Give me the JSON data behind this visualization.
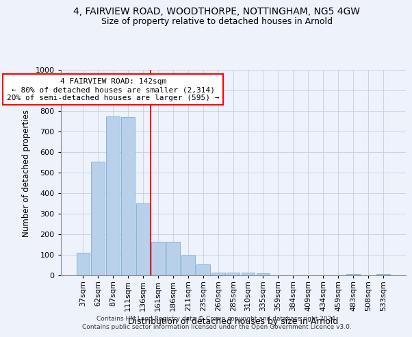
{
  "title1": "4, FAIRVIEW ROAD, WOODTHORPE, NOTTINGHAM, NG5 4GW",
  "title2": "Size of property relative to detached houses in Arnold",
  "xlabel": "Distribution of detached houses by size in Arnold",
  "ylabel": "Number of detached properties",
  "categories": [
    "37sqm",
    "62sqm",
    "87sqm",
    "111sqm",
    "136sqm",
    "161sqm",
    "186sqm",
    "211sqm",
    "235sqm",
    "260sqm",
    "285sqm",
    "310sqm",
    "335sqm",
    "359sqm",
    "384sqm",
    "409sqm",
    "434sqm",
    "459sqm",
    "483sqm",
    "508sqm",
    "533sqm"
  ],
  "values": [
    110,
    555,
    775,
    770,
    350,
    163,
    163,
    98,
    55,
    15,
    15,
    15,
    10,
    0,
    0,
    0,
    0,
    0,
    8,
    0,
    8
  ],
  "bar_color": "#b8d0ea",
  "bar_edge_color": "#7aadd4",
  "vline_x": 4.5,
  "vline_color": "red",
  "annotation_text": "4 FAIRVIEW ROAD: 142sqm\n← 80% of detached houses are smaller (2,314)\n20% of semi-detached houses are larger (595) →",
  "annotation_box_color": "white",
  "annotation_box_edge": "red",
  "ylim": [
    0,
    1000
  ],
  "yticks": [
    0,
    100,
    200,
    300,
    400,
    500,
    600,
    700,
    800,
    900,
    1000
  ],
  "footer1": "Contains HM Land Registry data © Crown copyright and database right 2024.",
  "footer2": "Contains public sector information licensed under the Open Government Licence v3.0.",
  "background_color": "#eef2fb",
  "plot_background": "#eef2fb"
}
